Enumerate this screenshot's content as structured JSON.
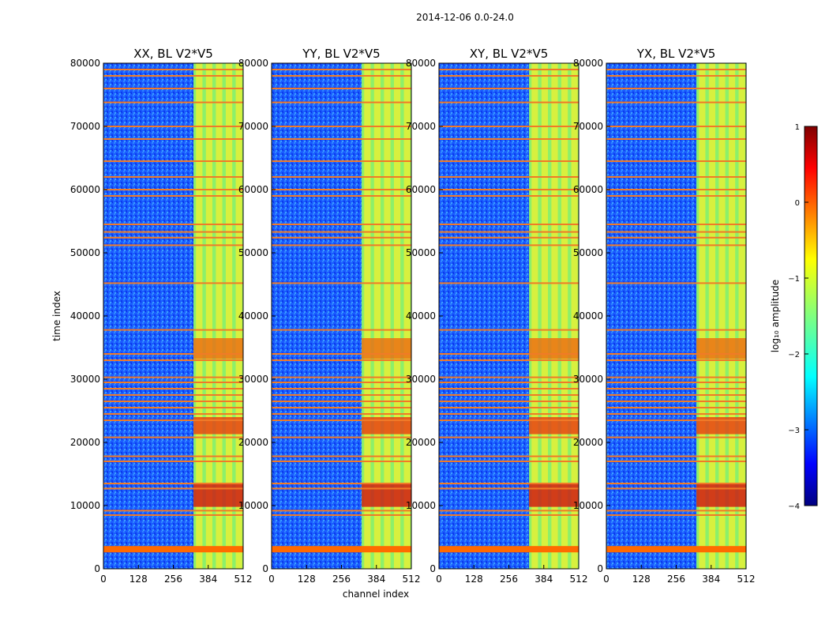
{
  "figure_title": "2014-12-06 0.0-24.0",
  "chart_data": {
    "type": "heatmap",
    "xlabel": "channel index",
    "ylabel": "time index",
    "x_range": [
      0,
      512
    ],
    "y_range": [
      0,
      80000
    ],
    "x_ticks": [
      0,
      128,
      256,
      384,
      512
    ],
    "y_ticks": [
      0,
      10000,
      20000,
      30000,
      40000,
      50000,
      60000,
      70000,
      80000
    ],
    "colorbar": {
      "label": "log₁₀ amplitude",
      "range": [
        -4,
        1
      ],
      "ticks": [
        1,
        0,
        -1,
        -2,
        -3,
        -4
      ],
      "tick_labels": [
        "1",
        "0",
        "−1",
        "−2",
        "−3",
        "−4"
      ],
      "colormap": "jet"
    },
    "panels": [
      {
        "title": "XX, BL V2*V5"
      },
      {
        "title": "YY, BL V2*V5"
      },
      {
        "title": "XY, BL V2*V5"
      },
      {
        "title": "YX, BL V2*V5"
      }
    ],
    "band_channels": [
      330,
      512
    ],
    "flagged_time_rows": [
      3000,
      8500,
      9200,
      12700,
      13500,
      17000,
      17800,
      20800,
      23500,
      24500,
      25500,
      26500,
      27500,
      28500,
      29500,
      30300,
      33000,
      34000,
      37800,
      45200,
      51200,
      52400,
      53300,
      54500,
      59000,
      60000,
      62000,
      64500,
      68000,
      70000,
      73800,
      76000,
      78000,
      79000
    ]
  }
}
